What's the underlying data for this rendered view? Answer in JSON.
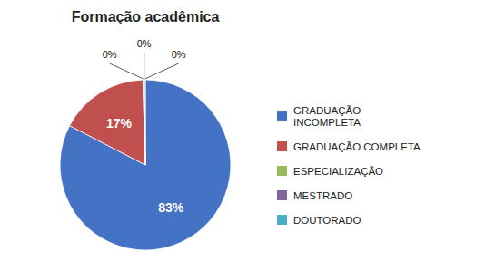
{
  "chart_data": {
    "type": "pie",
    "title": "Formação acadêmica",
    "categories": [
      "GRADUAÇÃO\nINCOMPLETA",
      "GRADUAÇÃO COMPLETA",
      "ESPECIALIZAÇÃO",
      "MESTRADO",
      "DOUTORADO"
    ],
    "values": [
      83,
      17,
      0.15,
      0.15,
      0.15
    ],
    "value_labels": [
      "83%",
      "17%",
      "0%",
      "0%",
      "0%"
    ],
    "colors": [
      "#4472C4",
      "#C0504D",
      "#9BBB59",
      "#8064A2",
      "#4BACC6"
    ],
    "data_labels": true,
    "legend": "right"
  }
}
